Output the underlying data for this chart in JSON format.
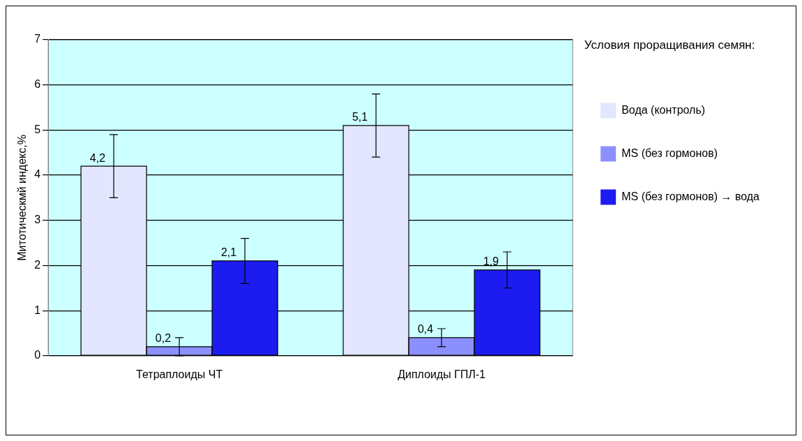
{
  "chart_data": {
    "type": "bar",
    "ylabel": "Митотическмй индекс,%",
    "categories": [
      "Тетраплоиды ЧТ",
      "Диплоиды ГПЛ-1"
    ],
    "series": [
      {
        "name": "Вода (контроль)",
        "color": "#e2e6ff",
        "values": [
          4.2,
          5.1
        ],
        "errors": [
          0.7,
          0.7
        ],
        "value_labels": [
          "4,2",
          "5,1"
        ]
      },
      {
        "name": "MS (без гормонов)",
        "color": "#8c90ff",
        "values": [
          0.2,
          0.4
        ],
        "errors": [
          0.2,
          0.2
        ],
        "value_labels": [
          "0,2",
          "0,4"
        ]
      },
      {
        "name": "MS (без гормонов) → вода",
        "color": "#1c1cf0",
        "values": [
          2.1,
          1.9
        ],
        "errors": [
          0.5,
          0.4
        ],
        "value_labels": [
          "2,1",
          "1,9"
        ]
      }
    ],
    "ylim": [
      0,
      7
    ],
    "yticks": [
      0,
      1,
      2,
      3,
      4,
      5,
      6,
      7
    ],
    "grid": "y",
    "legend": "right",
    "legend_title": "Условия проращивания семян:"
  }
}
